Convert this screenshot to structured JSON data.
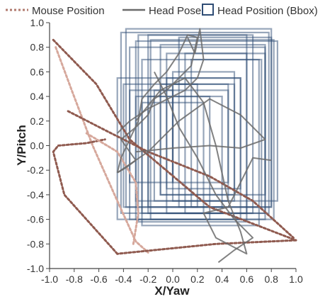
{
  "chart_data": {
    "type": "line",
    "title": "",
    "xlabel": "X/Yaw",
    "ylabel": "Y/Pitch",
    "xlim": [
      -1.0,
      1.0
    ],
    "ylim": [
      -1.0,
      1.0
    ],
    "xticks": [
      "-1.0",
      "-0.8",
      "-0.6",
      "-0.4",
      "-0.2",
      "0.0",
      "0.2",
      "0.4",
      "0.6",
      "0.8",
      "1.0"
    ],
    "yticks": [
      "1.0",
      "0.8",
      "0.6",
      "0.4",
      "0.2",
      "0.0",
      "-0.2",
      "-0.4",
      "-0.6",
      "-0.8",
      "-1.0"
    ],
    "grid": false,
    "legend": {
      "position": "top",
      "entries": [
        {
          "label": "Mouse Position",
          "style": "dotted-line",
          "color": "#b07a6e"
        },
        {
          "label": "Head Pose",
          "style": "solid-line",
          "color": "#6b6b6b"
        },
        {
          "label": "Head Position (Bbox)",
          "style": "square",
          "color": "#2f4d75"
        }
      ]
    },
    "colors": {
      "mouse_dark": "#8f5a4f",
      "mouse_light": "#d6a89c",
      "head_pose": "#6b6b6b",
      "bbox": "#2f4d75"
    },
    "series": [
      {
        "name": "Mouse Position",
        "segments": [
          {
            "shade": "dark",
            "points": [
              [
                -0.97,
                0.86
              ],
              [
                -0.62,
                0.5
              ],
              [
                -0.35,
                0.05
              ],
              [
                0.3,
                -0.5
              ],
              [
                1.0,
                -0.77
              ]
            ]
          },
          {
            "shade": "light",
            "points": [
              [
                -0.95,
                0.8
              ],
              [
                -0.82,
                0.45
              ],
              [
                -0.65,
                0.0
              ],
              [
                -0.45,
                -0.45
              ],
              [
                -0.3,
                -0.78
              ],
              [
                -0.2,
                -0.87
              ]
            ]
          },
          {
            "shade": "dark",
            "points": [
              [
                1.0,
                -0.77
              ],
              [
                0.35,
                -0.8
              ],
              [
                -0.45,
                -0.88
              ]
            ]
          },
          {
            "shade": "dark",
            "points": [
              [
                -0.45,
                -0.88
              ],
              [
                -0.88,
                -0.4
              ],
              [
                -0.97,
                -0.05
              ],
              [
                -0.93,
                0.0
              ],
              [
                -0.7,
                0.02
              ],
              [
                -0.55,
                0.05
              ]
            ]
          },
          {
            "shade": "dark",
            "points": [
              [
                -0.85,
                0.28
              ],
              [
                -0.5,
                0.1
              ],
              [
                -0.2,
                -0.05
              ],
              [
                0.3,
                -0.25
              ],
              [
                0.65,
                -0.45
              ],
              [
                0.98,
                -0.75
              ]
            ]
          },
          {
            "shade": "light",
            "points": [
              [
                -0.7,
                0.1
              ],
              [
                -0.45,
                -0.05
              ],
              [
                -0.3,
                -0.3
              ],
              [
                -0.28,
                -0.55
              ],
              [
                -0.32,
                -0.8
              ]
            ]
          }
        ]
      },
      {
        "name": "Head Pose",
        "segments": [
          {
            "shade": "main",
            "points": [
              [
                -0.45,
                -0.22
              ],
              [
                -0.42,
                -0.1
              ],
              [
                -0.35,
                0.05
              ],
              [
                -0.28,
                0.2
              ],
              [
                -0.25,
                0.38
              ],
              [
                -0.15,
                0.5
              ],
              [
                -0.05,
                0.6
              ],
              [
                0.05,
                0.75
              ],
              [
                0.12,
                0.9
              ],
              [
                0.2,
                0.88
              ],
              [
                0.15,
                0.65
              ],
              [
                0.05,
                0.55
              ],
              [
                -0.05,
                0.45
              ],
              [
                -0.15,
                0.38
              ],
              [
                -0.2,
                0.25
              ],
              [
                -0.3,
                0.15
              ],
              [
                -0.42,
                0.05
              ],
              [
                -0.35,
                -0.05
              ],
              [
                -0.3,
                -0.12
              ],
              [
                -0.38,
                -0.18
              ],
              [
                -0.45,
                -0.22
              ]
            ]
          },
          {
            "shade": "main",
            "points": [
              [
                -0.45,
                -0.22
              ],
              [
                -0.2,
                -0.05
              ],
              [
                0.05,
                0.2
              ],
              [
                0.3,
                0.38
              ],
              [
                0.55,
                0.25
              ],
              [
                0.75,
                0.05
              ],
              [
                0.55,
                -0.02
              ],
              [
                0.3,
                0.0
              ],
              [
                0.0,
                -0.02
              ],
              [
                -0.3,
                -0.05
              ]
            ]
          },
          {
            "shade": "main",
            "points": [
              [
                -0.3,
                0.2
              ],
              [
                -0.1,
                0.45
              ],
              [
                0.1,
                0.55
              ],
              [
                0.25,
                0.35
              ],
              [
                0.35,
                0.0
              ],
              [
                0.45,
                -0.45
              ],
              [
                0.55,
                -0.7
              ],
              [
                0.6,
                -0.88
              ],
              [
                0.35,
                -0.75
              ],
              [
                0.25,
                -0.55
              ],
              [
                0.45,
                -0.5
              ],
              [
                0.55,
                -0.3
              ],
              [
                0.65,
                -0.1
              ],
              [
                0.8,
                -0.12
              ]
            ]
          },
          {
            "shade": "main",
            "points": [
              [
                -0.15,
                0.6
              ],
              [
                -0.05,
                0.4
              ],
              [
                0.05,
                0.15
              ],
              [
                0.2,
                -0.1
              ],
              [
                0.35,
                -0.4
              ],
              [
                0.5,
                -0.6
              ],
              [
                0.65,
                -0.75
              ],
              [
                0.5,
                -0.85
              ],
              [
                0.37,
                -0.95
              ]
            ]
          },
          {
            "shade": "main",
            "points": [
              [
                0.12,
                0.88
              ],
              [
                0.18,
                0.75
              ],
              [
                0.22,
                0.95
              ],
              [
                0.25,
                0.7
              ],
              [
                0.2,
                0.55
              ],
              [
                0.1,
                0.45
              ],
              [
                -0.2,
                0.3
              ],
              [
                -0.35,
                0.2
              ],
              [
                -0.45,
                0.1
              ]
            ]
          }
        ]
      },
      {
        "name": "Head Position (Bbox)",
        "rects": [
          [
            -0.42,
            0.92,
            0.78,
            -0.55
          ],
          [
            -0.38,
            0.95,
            0.8,
            -0.5
          ],
          [
            -0.35,
            0.8,
            0.75,
            -0.6
          ],
          [
            -0.3,
            0.85,
            0.85,
            -0.45
          ],
          [
            -0.25,
            0.7,
            0.7,
            -0.65
          ],
          [
            -0.2,
            0.9,
            0.65,
            -0.55
          ],
          [
            -0.1,
            0.82,
            0.75,
            -0.4
          ],
          [
            -0.05,
            0.75,
            0.6,
            -0.55
          ],
          [
            0.0,
            0.6,
            0.5,
            -0.45
          ],
          [
            0.05,
            0.88,
            0.8,
            -0.5
          ],
          [
            -0.45,
            0.55,
            0.55,
            -0.6
          ],
          [
            -0.4,
            0.5,
            0.2,
            -0.5
          ],
          [
            -0.35,
            0.45,
            0.0,
            -0.3
          ],
          [
            -0.3,
            0.4,
            0.3,
            -0.6
          ],
          [
            -0.25,
            0.35,
            0.25,
            -0.55
          ],
          [
            -0.2,
            0.4,
            0.4,
            -0.5
          ],
          [
            -0.15,
            0.45,
            0.45,
            -0.45
          ],
          [
            -0.1,
            0.5,
            0.5,
            -0.4
          ],
          [
            -0.05,
            0.55,
            0.55,
            -0.35
          ],
          [
            0.0,
            0.5,
            0.45,
            -0.3
          ],
          [
            0.1,
            0.75,
            0.75,
            -0.55
          ],
          [
            0.15,
            0.7,
            0.72,
            -0.5
          ],
          [
            -0.28,
            0.9,
            0.6,
            -0.62
          ],
          [
            -0.18,
            0.86,
            0.82,
            -0.6
          ]
        ]
      }
    ]
  }
}
